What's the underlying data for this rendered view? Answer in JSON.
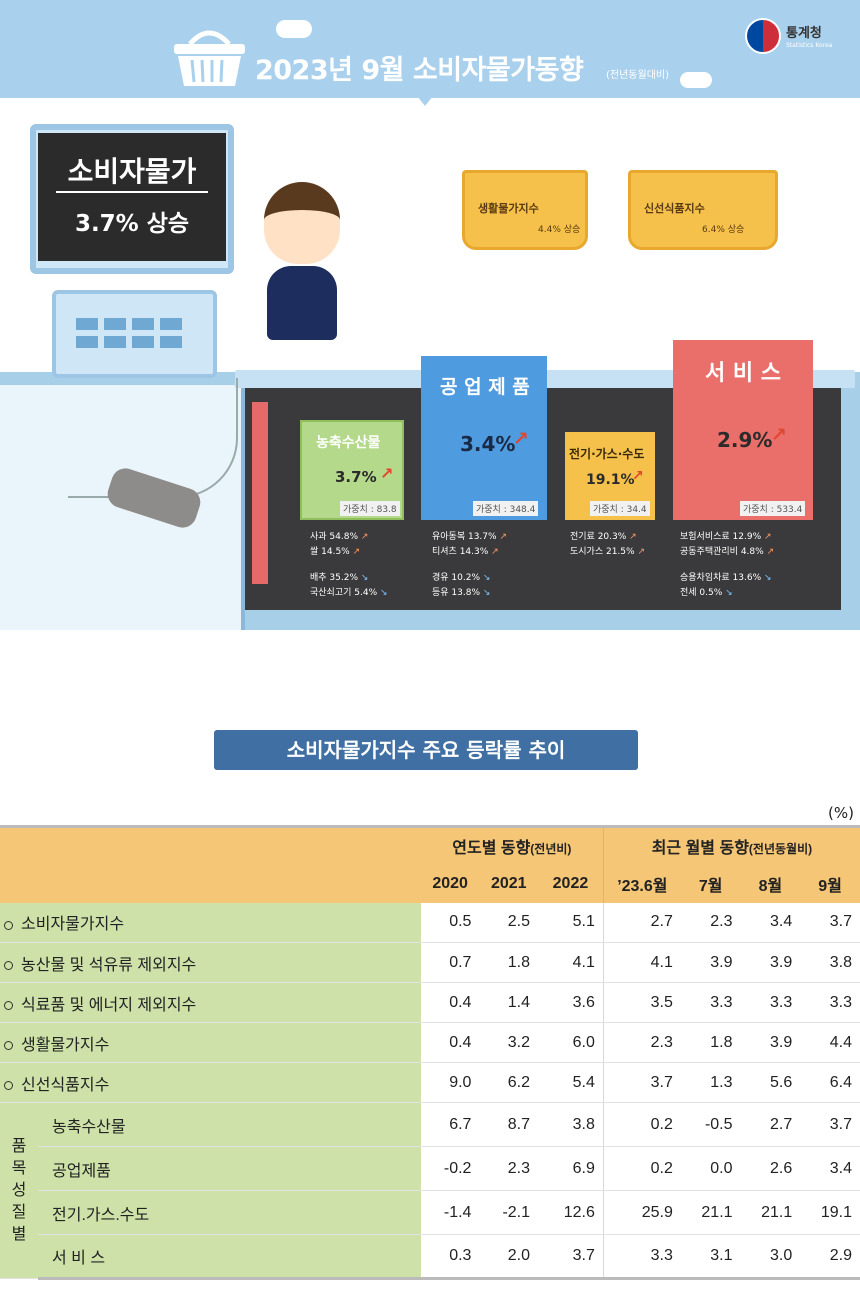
{
  "header": {
    "title": "2023년  9월 소비자물가동향",
    "subtitle": "(전년동월대비)",
    "logo_text": "통계청",
    "logo_sub": "Statistics Korea"
  },
  "monitor": {
    "title": "소비자물가",
    "value": "3.7% 상승"
  },
  "baskets": [
    {
      "label": "생활물가지수",
      "value": "4.4% 상승"
    },
    {
      "label": "신선식품지수",
      "value": "6.4% 상승"
    }
  ],
  "categories": {
    "agri": {
      "title": "농축수산물",
      "value": "3.7%",
      "weight": "가중치 : 83.8",
      "up": [
        "사과 54.8%",
        "쌀 14.5%"
      ],
      "down": [
        "배추 35.2%",
        "국산쇠고기 5.4%"
      ]
    },
    "industry": {
      "title": "공 업 제 품",
      "value": "3.4%",
      "weight": "가중치 : 348.4",
      "up": [
        "유아동복 13.7%",
        "티셔츠 14.3%"
      ],
      "down": [
        "경유 10.2%",
        "등유 13.8%"
      ]
    },
    "utility": {
      "title": "전기·가스·수도",
      "value": "19.1%",
      "weight": "가중치 : 34.4",
      "up": [
        "전기료 20.3%",
        "도시가스 21.5%"
      ]
    },
    "service": {
      "title": "서 비 스",
      "value": "2.9%",
      "weight": "가중치 : 533.4",
      "up": [
        "보험서비스료 12.9%",
        "공동주택관리비 4.8%"
      ],
      "down": [
        "승용차임차료 13.6%",
        "전세 0.5%"
      ]
    }
  },
  "section_title": "소비자물가지수 주요 등락률 추이",
  "unit": "(%)",
  "table": {
    "group_annual": "연도별 동향",
    "group_annual_note": "(전년비)",
    "group_monthly": "최근 월별 동향",
    "group_monthly_note": "(전년동월비)",
    "columns": [
      "2020",
      "2021",
      "2022",
      "’23.6월",
      "7월",
      "8월",
      "9월"
    ],
    "rows": [
      {
        "label": "소비자물가지수",
        "values": [
          "0.5",
          "2.5",
          "5.1",
          "2.7",
          "2.3",
          "3.4",
          "3.7"
        ]
      },
      {
        "label": "농산물 및 석유류 제외지수",
        "values": [
          "0.7",
          "1.8",
          "4.1",
          "4.1",
          "3.9",
          "3.9",
          "3.8"
        ]
      },
      {
        "label": "식료품 및 에너지 제외지수",
        "values": [
          "0.4",
          "1.4",
          "3.6",
          "3.5",
          "3.3",
          "3.3",
          "3.3"
        ]
      },
      {
        "label": "생활물가지수",
        "values": [
          "0.4",
          "3.2",
          "6.0",
          "2.3",
          "1.8",
          "3.9",
          "4.4"
        ]
      },
      {
        "label": "신선식품지수",
        "values": [
          "9.0",
          "6.2",
          "5.4",
          "3.7",
          "1.3",
          "5.6",
          "6.4"
        ]
      }
    ],
    "group_label": [
      "품",
      "목",
      "성",
      "질",
      "별"
    ],
    "sub_rows": [
      {
        "label": "농축수산물",
        "values": [
          "6.7",
          "8.7",
          "3.8",
          "0.2",
          "-0.5",
          "2.7",
          "3.7"
        ]
      },
      {
        "label": "공업제품",
        "values": [
          "-0.2",
          "2.3",
          "6.9",
          "0.2",
          "0.0",
          "2.6",
          "3.4"
        ]
      },
      {
        "label": "전기.가스.수도",
        "values": [
          "-1.4",
          "-2.1",
          "12.6",
          "25.9",
          "21.1",
          "21.1",
          "19.1"
        ]
      },
      {
        "label": "서 비 스",
        "values": [
          "0.3",
          "2.0",
          "3.7",
          "3.3",
          "3.1",
          "3.0",
          "2.9"
        ]
      }
    ]
  },
  "chart_data": {
    "type": "table",
    "title": "소비자물가지수 주요 등락률 추이",
    "unit": "%",
    "columns": [
      "2020",
      "2021",
      "2022",
      "’23.6월",
      "7월",
      "8월",
      "9월"
    ],
    "rows": [
      {
        "name": "소비자물가지수",
        "values": [
          0.5,
          2.5,
          5.1,
          2.7,
          2.3,
          3.4,
          3.7
        ]
      },
      {
        "name": "농산물 및 석유류 제외지수",
        "values": [
          0.7,
          1.8,
          4.1,
          4.1,
          3.9,
          3.9,
          3.8
        ]
      },
      {
        "name": "식료품 및 에너지 제외지수",
        "values": [
          0.4,
          1.4,
          3.6,
          3.5,
          3.3,
          3.3,
          3.3
        ]
      },
      {
        "name": "생활물가지수",
        "values": [
          0.4,
          3.2,
          6.0,
          2.3,
          1.8,
          3.9,
          4.4
        ]
      },
      {
        "name": "신선식품지수",
        "values": [
          9.0,
          6.2,
          5.4,
          3.7,
          1.3,
          5.6,
          6.4
        ]
      },
      {
        "name": "농축수산물",
        "values": [
          6.7,
          8.7,
          3.8,
          0.2,
          -0.5,
          2.7,
          3.7
        ]
      },
      {
        "name": "공업제품",
        "values": [
          -0.2,
          2.3,
          6.9,
          0.2,
          0.0,
          2.6,
          3.4
        ]
      },
      {
        "name": "전기.가스.수도",
        "values": [
          -1.4,
          -2.1,
          12.6,
          25.9,
          21.1,
          21.1,
          19.1
        ]
      },
      {
        "name": "서 비 스",
        "values": [
          0.3,
          2.0,
          3.7,
          3.3,
          3.1,
          3.0,
          2.9
        ]
      }
    ]
  }
}
